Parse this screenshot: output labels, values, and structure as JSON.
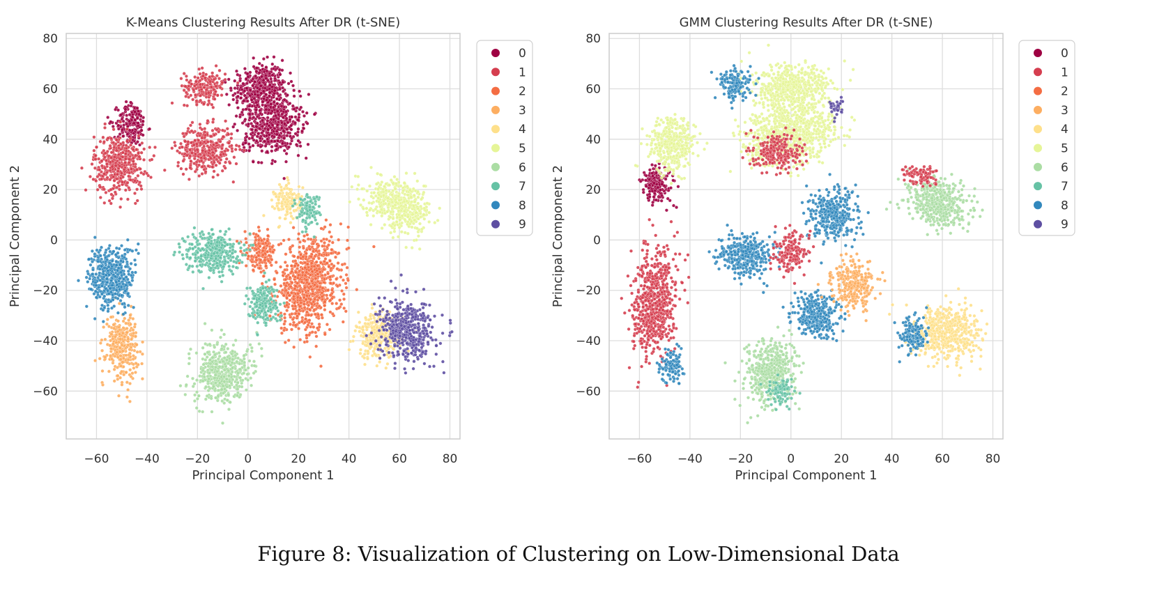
{
  "figure": {
    "caption": "Figure 8: Visualization of Clustering on Low-Dimensional Data"
  },
  "palette": [
    "#9e0142",
    "#d53e4f",
    "#f46d43",
    "#fdae61",
    "#fee08b",
    "#e6f598",
    "#abdda4",
    "#66c2a5",
    "#3288bd",
    "#5e4fa2"
  ],
  "chart_data": [
    {
      "type": "scatter",
      "title": "K-Means Clustering Results After DR (t-SNE)",
      "xlabel": "Principal Component 1",
      "ylabel": "Principal Component 2",
      "xlim": [
        -72,
        84
      ],
      "ylim": [
        -79,
        82
      ],
      "xticks": [
        -60,
        -40,
        -20,
        0,
        20,
        40,
        60,
        80
      ],
      "yticks": [
        -60,
        -40,
        -20,
        0,
        20,
        40,
        60,
        80
      ],
      "xtick_labels": [
        "−60",
        "−40",
        "−20",
        "0",
        "20",
        "40",
        "60",
        "80"
      ],
      "ytick_labels": [
        "−60",
        "−40",
        "−20",
        "0",
        "20",
        "40",
        "60",
        "80"
      ],
      "grid": true,
      "legend_position": "outside-right",
      "legend": [
        "0",
        "1",
        "2",
        "3",
        "4",
        "5",
        "6",
        "7",
        "8",
        "9"
      ],
      "clusters": [
        {
          "label": 0,
          "cx": 5,
          "cy": 60,
          "rx": 12,
          "ry": 11,
          "rot": 10
        },
        {
          "label": 0,
          "cx": 10,
          "cy": 45,
          "rx": 13,
          "ry": 12,
          "rot": 20
        },
        {
          "label": 0,
          "cx": -46,
          "cy": 46,
          "rx": 7,
          "ry": 9,
          "rot": -10
        },
        {
          "label": 1,
          "cx": -17,
          "cy": 61,
          "rx": 9,
          "ry": 7,
          "rot": 0
        },
        {
          "label": 1,
          "cx": -17,
          "cy": 36,
          "rx": 12,
          "ry": 10,
          "rot": 0
        },
        {
          "label": 1,
          "cx": -51,
          "cy": 30,
          "rx": 11,
          "ry": 13,
          "rot": 0
        },
        {
          "label": 2,
          "cx": 24,
          "cy": -18,
          "rx": 14,
          "ry": 20,
          "rot": -10
        },
        {
          "label": 2,
          "cx": 5,
          "cy": -5,
          "rx": 7,
          "ry": 8,
          "rot": 0
        },
        {
          "label": 3,
          "cx": -50,
          "cy": -42,
          "rx": 7,
          "ry": 14,
          "rot": 0
        },
        {
          "label": 4,
          "cx": 16,
          "cy": 15,
          "rx": 6,
          "ry": 8,
          "rot": 0
        },
        {
          "label": 4,
          "cx": 52,
          "cy": -38,
          "rx": 10,
          "ry": 10,
          "rot": 0
        },
        {
          "label": 5,
          "cx": 60,
          "cy": 14,
          "rx": 15,
          "ry": 10,
          "rot": -30
        },
        {
          "label": 6,
          "cx": -10,
          "cy": -53,
          "rx": 11,
          "ry": 14,
          "rot": -30
        },
        {
          "label": 7,
          "cx": -14,
          "cy": -5,
          "rx": 12,
          "ry": 9,
          "rot": 0
        },
        {
          "label": 7,
          "cx": 6,
          "cy": -25,
          "rx": 7,
          "ry": 9,
          "rot": 0
        },
        {
          "label": 7,
          "cx": 24,
          "cy": 12,
          "rx": 5,
          "ry": 7,
          "rot": 0
        },
        {
          "label": 8,
          "cx": -54,
          "cy": -15,
          "rx": 10,
          "ry": 14,
          "rot": 0
        },
        {
          "label": 9,
          "cx": 63,
          "cy": -36,
          "rx": 12,
          "ry": 13,
          "rot": 0
        }
      ]
    },
    {
      "type": "scatter",
      "title": "GMM Clustering Results After DR (t-SNE)",
      "xlabel": "Principal Component 1",
      "ylabel": "Principal Component 2",
      "xlim": [
        -72,
        84
      ],
      "ylim": [
        -79,
        82
      ],
      "xticks": [
        -60,
        -40,
        -20,
        0,
        20,
        40,
        60,
        80
      ],
      "yticks": [
        -60,
        -40,
        -20,
        0,
        20,
        40,
        60,
        80
      ],
      "xtick_labels": [
        "−60",
        "−40",
        "−20",
        "0",
        "20",
        "40",
        "60",
        "80"
      ],
      "ytick_labels": [
        "−60",
        "−40",
        "−20",
        "0",
        "20",
        "40",
        "60",
        "80"
      ],
      "grid": true,
      "legend_position": "outside-right",
      "legend": [
        "0",
        "1",
        "2",
        "3",
        "4",
        "5",
        "6",
        "7",
        "8",
        "9"
      ],
      "clusters": [
        {
          "label": 1,
          "cx": -54,
          "cy": -25,
          "rx": 9,
          "ry": 23,
          "rot": -5
        },
        {
          "label": 8,
          "cx": -47,
          "cy": -50,
          "rx": 5,
          "ry": 7,
          "rot": 0
        },
        {
          "label": 0,
          "cx": -53,
          "cy": 22,
          "rx": 7,
          "ry": 8,
          "rot": 0
        },
        {
          "label": 5,
          "cx": -47,
          "cy": 38,
          "rx": 10,
          "ry": 12,
          "rot": 0
        },
        {
          "label": 5,
          "cx": 0,
          "cy": 60,
          "rx": 17,
          "ry": 10,
          "rot": 0
        },
        {
          "label": 5,
          "cx": 0,
          "cy": 42,
          "rx": 20,
          "ry": 12,
          "rot": 10
        },
        {
          "label": 1,
          "cx": -5,
          "cy": 35,
          "rx": 10,
          "ry": 8,
          "rot": 0
        },
        {
          "label": 8,
          "cx": -22,
          "cy": 62,
          "rx": 7,
          "ry": 7,
          "rot": 0
        },
        {
          "label": 9,
          "cx": 18,
          "cy": 52,
          "rx": 3,
          "ry": 4,
          "rot": 0
        },
        {
          "label": 8,
          "cx": 17,
          "cy": 10,
          "rx": 10,
          "ry": 11,
          "rot": -20
        },
        {
          "label": 8,
          "cx": -18,
          "cy": -6,
          "rx": 12,
          "ry": 9,
          "rot": 0
        },
        {
          "label": 1,
          "cx": 0,
          "cy": -5,
          "rx": 7,
          "ry": 8,
          "rot": 0
        },
        {
          "label": 8,
          "cx": 10,
          "cy": -30,
          "rx": 10,
          "ry": 10,
          "rot": 0
        },
        {
          "label": 3,
          "cx": 25,
          "cy": -18,
          "rx": 9,
          "ry": 10,
          "rot": 0
        },
        {
          "label": 6,
          "cx": 58,
          "cy": 15,
          "rx": 14,
          "ry": 10,
          "rot": -30
        },
        {
          "label": 1,
          "cx": 52,
          "cy": 26,
          "rx": 7,
          "ry": 4,
          "rot": 0
        },
        {
          "label": 4,
          "cx": 62,
          "cy": -37,
          "rx": 14,
          "ry": 12,
          "rot": 0
        },
        {
          "label": 8,
          "cx": 48,
          "cy": -38,
          "rx": 6,
          "ry": 8,
          "rot": 0
        },
        {
          "label": 6,
          "cx": -8,
          "cy": -53,
          "rx": 11,
          "ry": 14,
          "rot": -20
        },
        {
          "label": 7,
          "cx": -4,
          "cy": -60,
          "rx": 5,
          "ry": 6,
          "rot": 0
        }
      ]
    }
  ]
}
